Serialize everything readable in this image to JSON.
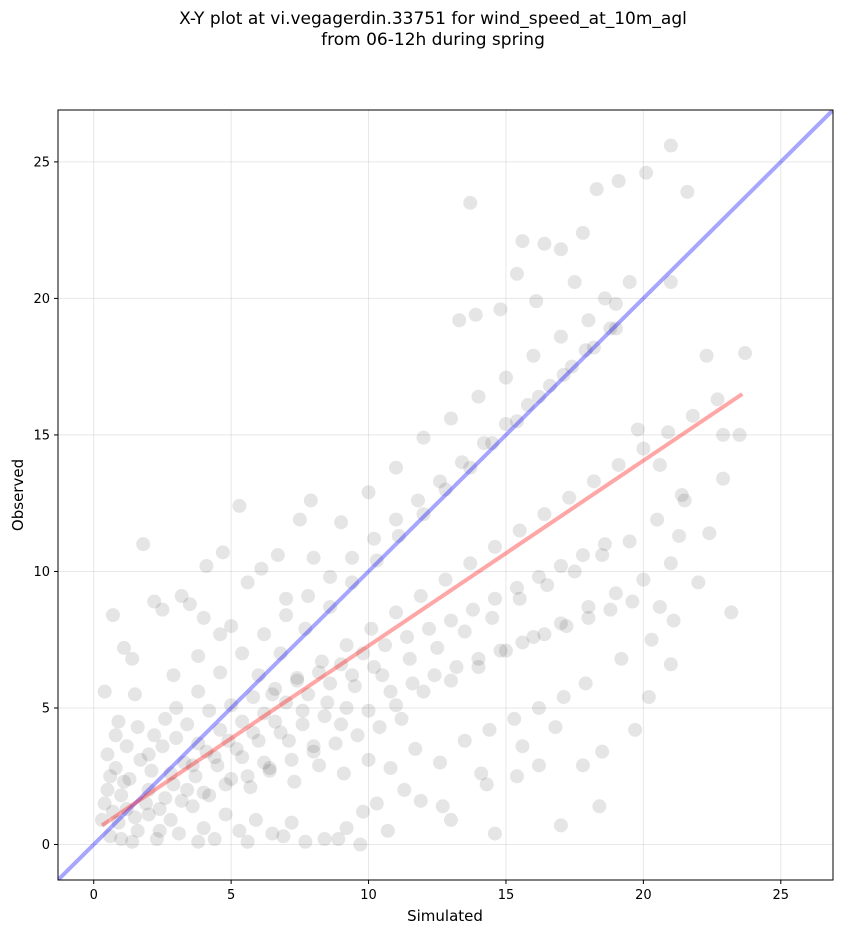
{
  "chart_data": {
    "type": "scatter",
    "title": [
      "X-Y plot at vi.vegagerdin.33751 for wind_speed_at_10m_agl",
      "from 06-12h during spring"
    ],
    "xlabel": "Simulated",
    "ylabel": "Observed",
    "xlim": [
      -1.3,
      26.9
    ],
    "ylim": [
      -1.3,
      26.9
    ],
    "xticks": [
      0,
      5,
      10,
      15,
      20,
      25
    ],
    "yticks": [
      0,
      5,
      10,
      15,
      20,
      25
    ],
    "grid": true,
    "points_color": "#000000",
    "points_alpha": 0.1,
    "identity_line": {
      "from": [
        -1.3,
        -1.3
      ],
      "to": [
        26.9,
        26.9
      ],
      "color": "#0000ff",
      "alpha": 0.35
    },
    "regression_line": {
      "from": [
        0.3,
        0.7
      ],
      "to": [
        23.6,
        16.5
      ],
      "color": "#ff0000",
      "alpha": 0.35
    },
    "points": [
      [
        0.4,
        5.6
      ],
      [
        0.7,
        8.4
      ],
      [
        1.8,
        11.0
      ],
      [
        2.2,
        8.9
      ],
      [
        2.5,
        8.6
      ],
      [
        3.2,
        9.1
      ],
      [
        3.5,
        8.8
      ],
      [
        4.0,
        8.3
      ],
      [
        1.1,
        7.2
      ],
      [
        1.4,
        6.8
      ],
      [
        0.9,
        4.5
      ],
      [
        1.5,
        5.5
      ],
      [
        2.9,
        6.2
      ],
      [
        3.8,
        6.9
      ],
      [
        4.6,
        7.7
      ],
      [
        5.0,
        8.0
      ],
      [
        5.6,
        9.6
      ],
      [
        6.1,
        10.1
      ],
      [
        6.7,
        10.6
      ],
      [
        7.5,
        11.9
      ],
      [
        7.9,
        12.6
      ],
      [
        4.7,
        10.7
      ],
      [
        4.1,
        10.2
      ],
      [
        5.3,
        12.4
      ],
      [
        13.7,
        23.5
      ],
      [
        21.0,
        25.6
      ],
      [
        21.6,
        23.9
      ],
      [
        20.1,
        24.6
      ],
      [
        19.1,
        24.3
      ],
      [
        18.3,
        24.0
      ],
      [
        17.8,
        22.4
      ],
      [
        17.0,
        21.8
      ],
      [
        16.4,
        22.0
      ],
      [
        15.6,
        22.1
      ],
      [
        15.4,
        20.9
      ],
      [
        14.8,
        19.6
      ],
      [
        13.9,
        19.4
      ],
      [
        13.3,
        19.2
      ],
      [
        16.1,
        19.9
      ],
      [
        17.5,
        20.6
      ],
      [
        18.6,
        20.0
      ],
      [
        19.5,
        20.6
      ],
      [
        21.0,
        20.6
      ],
      [
        22.3,
        17.9
      ],
      [
        23.7,
        18.0
      ],
      [
        22.9,
        15.0
      ],
      [
        23.5,
        15.0
      ],
      [
        22.9,
        13.4
      ],
      [
        22.4,
        11.4
      ],
      [
        21.3,
        11.3
      ],
      [
        20.6,
        8.7
      ],
      [
        23.2,
        8.5
      ],
      [
        21.0,
        6.6
      ],
      [
        20.2,
        5.4
      ],
      [
        19.7,
        4.2
      ],
      [
        18.5,
        3.4
      ],
      [
        17.8,
        2.9
      ],
      [
        16.2,
        2.9
      ],
      [
        15.4,
        2.5
      ],
      [
        14.3,
        2.2
      ],
      [
        13.0,
        0.9
      ],
      [
        14.6,
        0.4
      ],
      [
        17.0,
        0.7
      ],
      [
        18.4,
        1.4
      ],
      [
        11.9,
        1.6
      ],
      [
        10.7,
        0.5
      ],
      [
        10.3,
        1.5
      ],
      [
        9.7,
        0.0
      ],
      [
        9.2,
        0.6
      ],
      [
        8.4,
        0.2
      ],
      [
        7.2,
        0.8
      ],
      [
        6.5,
        0.4
      ],
      [
        0.6,
        0.3
      ],
      [
        0.9,
        0.8
      ],
      [
        1.2,
        1.3
      ],
      [
        1.6,
        0.5
      ],
      [
        2.0,
        1.1
      ],
      [
        2.3,
        0.2
      ],
      [
        2.8,
        0.9
      ],
      [
        3.1,
        0.4
      ],
      [
        3.6,
        1.4
      ],
      [
        4.0,
        0.6
      ],
      [
        4.4,
        0.2
      ],
      [
        4.8,
        1.1
      ],
      [
        5.3,
        0.5
      ],
      [
        5.9,
        0.9
      ],
      [
        0.5,
        2.0
      ],
      [
        0.8,
        2.8
      ],
      [
        1.3,
        2.4
      ],
      [
        1.7,
        3.1
      ],
      [
        2.1,
        2.7
      ],
      [
        2.5,
        3.6
      ],
      [
        2.9,
        2.2
      ],
      [
        3.3,
        3.0
      ],
      [
        3.7,
        2.5
      ],
      [
        4.1,
        3.4
      ],
      [
        4.5,
        2.9
      ],
      [
        4.9,
        3.8
      ],
      [
        5.4,
        3.2
      ],
      [
        5.8,
        4.1
      ],
      [
        6.2,
        3.0
      ],
      [
        6.6,
        4.5
      ],
      [
        7.1,
        3.8
      ],
      [
        7.6,
        4.9
      ],
      [
        8.0,
        3.6
      ],
      [
        8.5,
        5.2
      ],
      [
        9.0,
        4.4
      ],
      [
        9.5,
        5.8
      ],
      [
        10.0,
        4.9
      ],
      [
        10.5,
        6.2
      ],
      [
        11.0,
        5.1
      ],
      [
        11.5,
        6.8
      ],
      [
        12.0,
        5.6
      ],
      [
        12.5,
        7.2
      ],
      [
        13.0,
        6.0
      ],
      [
        13.5,
        7.8
      ],
      [
        14.0,
        6.5
      ],
      [
        14.5,
        8.3
      ],
      [
        15.0,
        7.1
      ],
      [
        15.5,
        9.0
      ],
      [
        16.0,
        7.6
      ],
      [
        16.5,
        9.5
      ],
      [
        17.0,
        8.1
      ],
      [
        17.5,
        10.0
      ],
      [
        18.0,
        8.7
      ],
      [
        18.5,
        10.6
      ],
      [
        19.0,
        9.2
      ],
      [
        19.5,
        11.1
      ],
      [
        20.0,
        9.7
      ],
      [
        20.5,
        11.9
      ],
      [
        21.0,
        10.3
      ],
      [
        21.5,
        12.6
      ],
      [
        1.0,
        1.8
      ],
      [
        1.9,
        1.5
      ],
      [
        2.6,
        1.7
      ],
      [
        3.4,
        2.0
      ],
      [
        4.2,
        1.8
      ],
      [
        5.0,
        2.4
      ],
      [
        5.7,
        2.1
      ],
      [
        6.4,
        2.7
      ],
      [
        7.3,
        2.3
      ],
      [
        8.2,
        2.9
      ],
      [
        9.1,
        2.6
      ],
      [
        10.0,
        3.1
      ],
      [
        10.8,
        2.8
      ],
      [
        11.7,
        3.5
      ],
      [
        12.6,
        3.0
      ],
      [
        13.5,
        3.8
      ],
      [
        14.4,
        4.2
      ],
      [
        15.3,
        4.6
      ],
      [
        16.2,
        5.0
      ],
      [
        17.1,
        5.4
      ],
      [
        6.0,
        6.2
      ],
      [
        6.8,
        7.0
      ],
      [
        7.7,
        7.9
      ],
      [
        8.6,
        8.7
      ],
      [
        9.4,
        9.6
      ],
      [
        10.3,
        10.4
      ],
      [
        11.1,
        11.3
      ],
      [
        12.0,
        12.1
      ],
      [
        12.8,
        13.0
      ],
      [
        13.7,
        13.8
      ],
      [
        14.5,
        14.7
      ],
      [
        15.4,
        15.5
      ],
      [
        16.2,
        16.4
      ],
      [
        17.1,
        17.2
      ],
      [
        17.9,
        18.1
      ],
      [
        18.8,
        18.9
      ],
      [
        7.0,
        9.0
      ],
      [
        8.0,
        10.5
      ],
      [
        9.0,
        11.8
      ],
      [
        10.0,
        12.9
      ],
      [
        11.0,
        13.8
      ],
      [
        12.0,
        14.9
      ],
      [
        13.0,
        15.6
      ],
      [
        14.0,
        16.4
      ],
      [
        15.0,
        17.1
      ],
      [
        16.0,
        17.9
      ],
      [
        17.0,
        18.6
      ],
      [
        18.0,
        19.2
      ],
      [
        19.0,
        19.8
      ],
      [
        6.5,
        5.5
      ],
      [
        7.4,
        6.1
      ],
      [
        8.3,
        6.7
      ],
      [
        9.2,
        7.3
      ],
      [
        10.1,
        7.9
      ],
      [
        11.0,
        8.5
      ],
      [
        11.9,
        9.1
      ],
      [
        12.8,
        9.7
      ],
      [
        13.7,
        10.3
      ],
      [
        14.6,
        10.9
      ],
      [
        15.5,
        11.5
      ],
      [
        16.4,
        12.1
      ],
      [
        17.3,
        12.7
      ],
      [
        18.2,
        13.3
      ],
      [
        19.1,
        13.9
      ],
      [
        20.0,
        14.5
      ],
      [
        20.9,
        15.1
      ],
      [
        21.8,
        15.7
      ],
      [
        22.7,
        16.3
      ],
      [
        3.0,
        5.0
      ],
      [
        3.8,
        5.6
      ],
      [
        4.6,
        6.3
      ],
      [
        5.4,
        7.0
      ],
      [
        6.2,
        7.7
      ],
      [
        7.0,
        8.4
      ],
      [
        7.8,
        9.1
      ],
      [
        8.6,
        9.8
      ],
      [
        9.4,
        10.5
      ],
      [
        10.2,
        11.2
      ],
      [
        11.0,
        11.9
      ],
      [
        11.8,
        12.6
      ],
      [
        12.6,
        13.3
      ],
      [
        13.4,
        14.0
      ],
      [
        14.2,
        14.7
      ],
      [
        15.0,
        15.4
      ],
      [
        15.8,
        16.1
      ],
      [
        16.6,
        16.8
      ],
      [
        17.4,
        17.5
      ],
      [
        18.2,
        18.2
      ],
      [
        19.0,
        18.9
      ],
      [
        19.8,
        15.2
      ],
      [
        20.6,
        13.9
      ],
      [
        21.4,
        12.8
      ],
      [
        9.8,
        1.2
      ],
      [
        11.3,
        2.0
      ],
      [
        12.7,
        1.4
      ],
      [
        14.1,
        2.6
      ],
      [
        15.6,
        3.6
      ],
      [
        16.8,
        4.3
      ],
      [
        17.9,
        5.9
      ],
      [
        19.2,
        6.8
      ],
      [
        20.3,
        7.5
      ],
      [
        21.1,
        8.2
      ],
      [
        22.0,
        9.6
      ],
      [
        0.7,
        1.2
      ],
      [
        1.1,
        2.3
      ],
      [
        1.5,
        1.0
      ],
      [
        2.0,
        2.0
      ],
      [
        2.4,
        1.3
      ],
      [
        2.8,
        2.6
      ],
      [
        3.2,
        1.6
      ],
      [
        3.6,
        2.9
      ],
      [
        4.0,
        1.9
      ],
      [
        4.4,
        3.2
      ],
      [
        4.8,
        2.2
      ],
      [
        5.2,
        3.5
      ],
      [
        5.6,
        2.5
      ],
      [
        6.0,
        3.8
      ],
      [
        6.4,
        2.8
      ],
      [
        6.8,
        4.1
      ],
      [
        7.2,
        3.1
      ],
      [
        7.6,
        4.4
      ],
      [
        8.0,
        3.4
      ],
      [
        8.4,
        4.7
      ],
      [
        8.8,
        3.7
      ],
      [
        9.2,
        5.0
      ],
      [
        9.6,
        4.0
      ],
      [
        10.4,
        4.3
      ],
      [
        10.8,
        5.6
      ],
      [
        11.2,
        4.6
      ],
      [
        11.6,
        5.9
      ],
      [
        12.4,
        6.2
      ],
      [
        13.2,
        6.5
      ],
      [
        14.0,
        6.8
      ],
      [
        14.8,
        7.1
      ],
      [
        15.6,
        7.4
      ],
      [
        16.4,
        7.7
      ],
      [
        17.2,
        8.0
      ],
      [
        18.0,
        8.3
      ],
      [
        18.8,
        8.6
      ],
      [
        19.6,
        8.9
      ],
      [
        2.2,
        4.0
      ],
      [
        2.6,
        4.6
      ],
      [
        3.0,
        3.9
      ],
      [
        3.4,
        4.4
      ],
      [
        3.8,
        3.7
      ],
      [
        4.2,
        4.9
      ],
      [
        4.6,
        4.2
      ],
      [
        5.0,
        5.1
      ],
      [
        5.4,
        4.5
      ],
      [
        5.8,
        5.4
      ],
      [
        6.2,
        4.8
      ],
      [
        6.6,
        5.7
      ],
      [
        7.0,
        5.2
      ],
      [
        7.4,
        6.0
      ],
      [
        7.8,
        5.5
      ],
      [
        8.2,
        6.3
      ],
      [
        8.6,
        5.9
      ],
      [
        9.0,
        6.6
      ],
      [
        9.4,
        6.2
      ],
      [
        9.8,
        7.0
      ],
      [
        10.2,
        6.5
      ],
      [
        10.6,
        7.3
      ],
      [
        11.4,
        7.6
      ],
      [
        12.2,
        7.9
      ],
      [
        13.0,
        8.2
      ],
      [
        13.8,
        8.6
      ],
      [
        14.6,
        9.0
      ],
      [
        15.4,
        9.4
      ],
      [
        16.2,
        9.8
      ],
      [
        17.0,
        10.2
      ],
      [
        17.8,
        10.6
      ],
      [
        18.6,
        11.0
      ],
      [
        1.0,
        0.2
      ],
      [
        1.4,
        0.1
      ],
      [
        2.4,
        0.5
      ],
      [
        3.8,
        0.1
      ],
      [
        5.6,
        0.1
      ],
      [
        6.9,
        0.3
      ],
      [
        7.7,
        0.1
      ],
      [
        8.9,
        0.2
      ],
      [
        0.4,
        1.5
      ],
      [
        0.3,
        0.9
      ],
      [
        0.6,
        2.5
      ],
      [
        0.5,
        3.3
      ],
      [
        0.8,
        4.0
      ],
      [
        1.2,
        3.6
      ],
      [
        1.6,
        4.3
      ],
      [
        2.0,
        3.3
      ]
    ]
  }
}
